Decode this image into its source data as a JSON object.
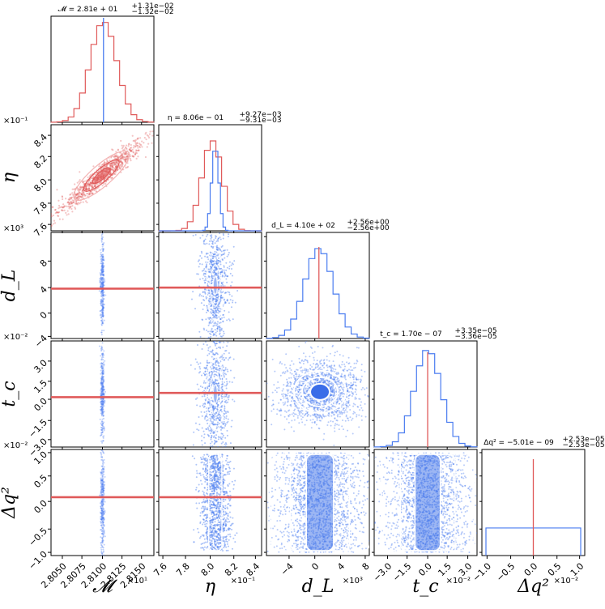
{
  "chart_data": {
    "type": "corner",
    "params": [
      {
        "id": "M",
        "label": "𝓜",
        "exponent_label": "×10¹",
        "ticks": [
          "2.8050",
          "2.8075",
          "2.8100",
          "2.8125",
          "2.8150"
        ],
        "range": [
          2.803,
          2.8155
        ],
        "center": 2.81,
        "sigma": 0.00132
      },
      {
        "id": "eta",
        "label": "η",
        "exponent_label": "×10⁻¹",
        "ticks": [
          "7.6",
          "7.8",
          "8.0",
          "8.2",
          "8.4"
        ],
        "range": [
          7.58,
          8.48
        ],
        "center": 8.06,
        "sigma": 0.093
      },
      {
        "id": "dL",
        "label": "d_L",
        "exponent_label": "×10³",
        "ticks": [
          "−4",
          "0",
          "4",
          "8"
        ],
        "range": [
          -7.5,
          8.5
        ],
        "center": 0.5,
        "sigma": 1.8
      },
      {
        "id": "tc",
        "label": "t_c",
        "exponent_label": "×10⁻²",
        "ticks": [
          "−3.0",
          "−1.5",
          "0.0",
          "1.5",
          "3.0"
        ],
        "range": [
          -4.0,
          3.6
        ],
        "center": 0.0,
        "sigma": 0.75
      },
      {
        "id": "dq2",
        "label": "Δq²",
        "exponent_label": "×10⁻²",
        "ticks": [
          "−1.0",
          "−0.5",
          "0.0",
          "0.5",
          "1.0"
        ],
        "range": [
          -1.1,
          1.1
        ],
        "center": 0.0,
        "sigma": 0.6
      }
    ],
    "row_ticks": [
      null,
      [
        "7.6",
        "7.8",
        "8.0",
        "8.2",
        "8.4"
      ],
      [
        "−4",
        "0",
        "4",
        "8"
      ],
      [
        "−3.0",
        "−1.5",
        "0.0",
        "1.5",
        "3.0"
      ],
      [
        "−1.0",
        "−0.5",
        "0.0",
        "0.5",
        "1.0"
      ]
    ],
    "row_offsets": [
      "×10⁻¹",
      "×10³",
      "×10⁻²",
      "×10⁻²"
    ],
    "titles": {
      "M": {
        "lhs": "𝓜 = 2.81e + 01",
        "up": "+1.31e−02",
        "lo": "−1.32e−02"
      },
      "eta": {
        "lhs": "η = 8.06e − 01",
        "up": "+9.27e−03",
        "lo": "−9.31e−03"
      },
      "dL": {
        "lhs": "d_L = 4.10e + 02",
        "up": "+2.56e+00",
        "lo": "−2.56e+00"
      },
      "tc": {
        "lhs": "t_c = 1.70e − 07",
        "up": "+3.35e−05",
        "lo": "−3.36e−05"
      },
      "dq2": {
        "lhs": "Δq² = −5.01e − 09",
        "up": "+2.53e−05",
        "lo": "−2.53e−05"
      }
    },
    "series": [
      {
        "name": "red",
        "color": "#e05a5a",
        "marginals": [
          "M",
          "eta"
        ]
      },
      {
        "name": "blue",
        "color": "#4a7cf0",
        "marginals": [
          "dL",
          "tc",
          "dq2"
        ]
      }
    ]
  }
}
